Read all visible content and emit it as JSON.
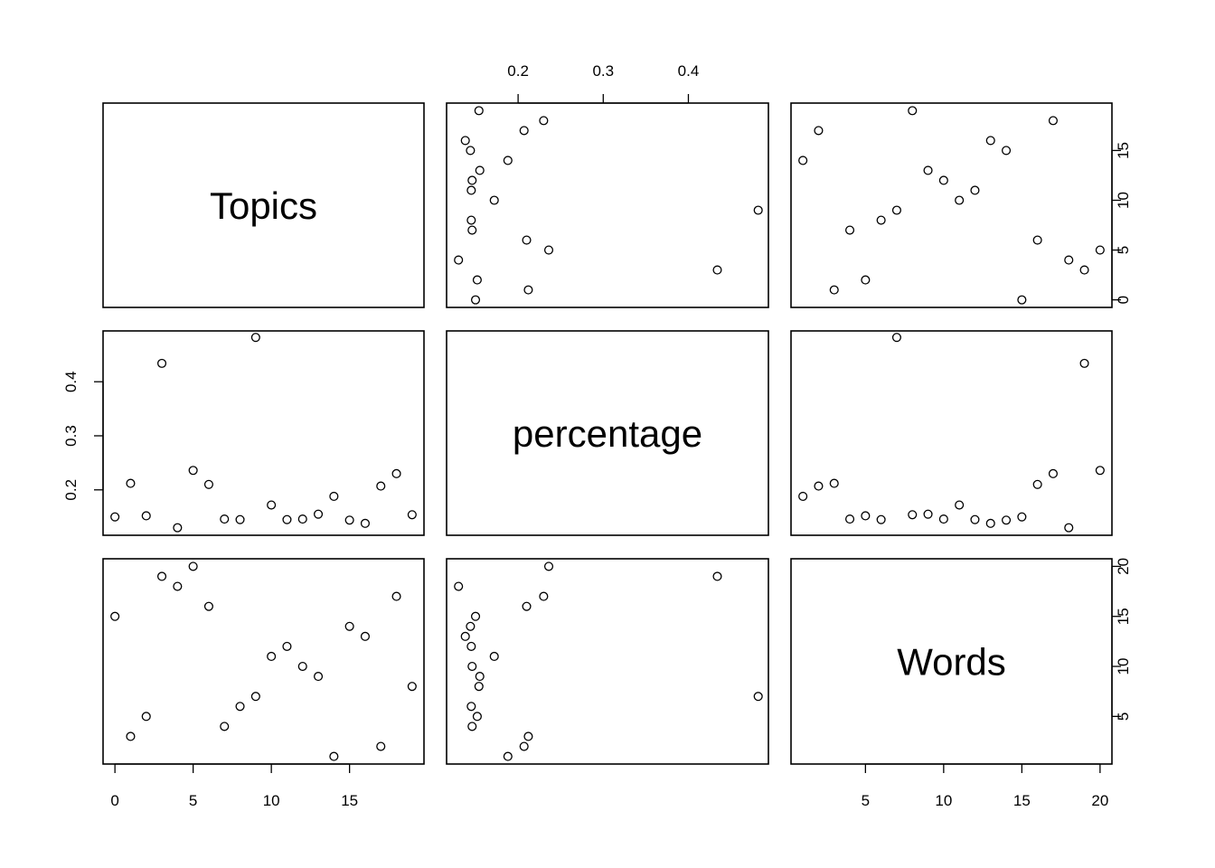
{
  "chart_data": {
    "type": "scatter",
    "subtype": "pairs-matrix",
    "variables": [
      "Topics",
      "percentage",
      "Words"
    ],
    "ranges": {
      "Topics": [
        0,
        19
      ],
      "percentage": [
        0.13,
        0.48
      ],
      "Words": [
        1,
        20
      ]
    },
    "ticks": {
      "Topics": [
        0,
        5,
        10,
        15
      ],
      "percentage": [
        0.2,
        0.3,
        0.4
      ],
      "Words": [
        5,
        10,
        15,
        20
      ]
    },
    "tick_labels": {
      "Topics": [
        "0",
        "5",
        "10",
        "15"
      ],
      "percentage": [
        "0.2",
        "0.3",
        "0.4"
      ],
      "Words": [
        "5",
        "10",
        "15",
        "20"
      ]
    },
    "rows": [
      {
        "Topics": 0,
        "percentage": 0.15,
        "Words": 15
      },
      {
        "Topics": 1,
        "percentage": 0.212,
        "Words": 3
      },
      {
        "Topics": 2,
        "percentage": 0.152,
        "Words": 5
      },
      {
        "Topics": 3,
        "percentage": 0.434,
        "Words": 19
      },
      {
        "Topics": 4,
        "percentage": 0.13,
        "Words": 18
      },
      {
        "Topics": 5,
        "percentage": 0.236,
        "Words": 20
      },
      {
        "Topics": 6,
        "percentage": 0.21,
        "Words": 16
      },
      {
        "Topics": 7,
        "percentage": 0.146,
        "Words": 4
      },
      {
        "Topics": 8,
        "percentage": 0.145,
        "Words": 6
      },
      {
        "Topics": 9,
        "percentage": 0.482,
        "Words": 7
      },
      {
        "Topics": 10,
        "percentage": 0.172,
        "Words": 11
      },
      {
        "Topics": 11,
        "percentage": 0.145,
        "Words": 12
      },
      {
        "Topics": 12,
        "percentage": 0.146,
        "Words": 10
      },
      {
        "Topics": 13,
        "percentage": 0.155,
        "Words": 9
      },
      {
        "Topics": 14,
        "percentage": 0.188,
        "Words": 1
      },
      {
        "Topics": 15,
        "percentage": 0.144,
        "Words": 14
      },
      {
        "Topics": 16,
        "percentage": 0.138,
        "Words": 13
      },
      {
        "Topics": 17,
        "percentage": 0.207,
        "Words": 2
      },
      {
        "Topics": 18,
        "percentage": 0.23,
        "Words": 17
      },
      {
        "Topics": 19,
        "percentage": 0.154,
        "Words": 8
      }
    ],
    "grid": false,
    "legend": "none"
  }
}
